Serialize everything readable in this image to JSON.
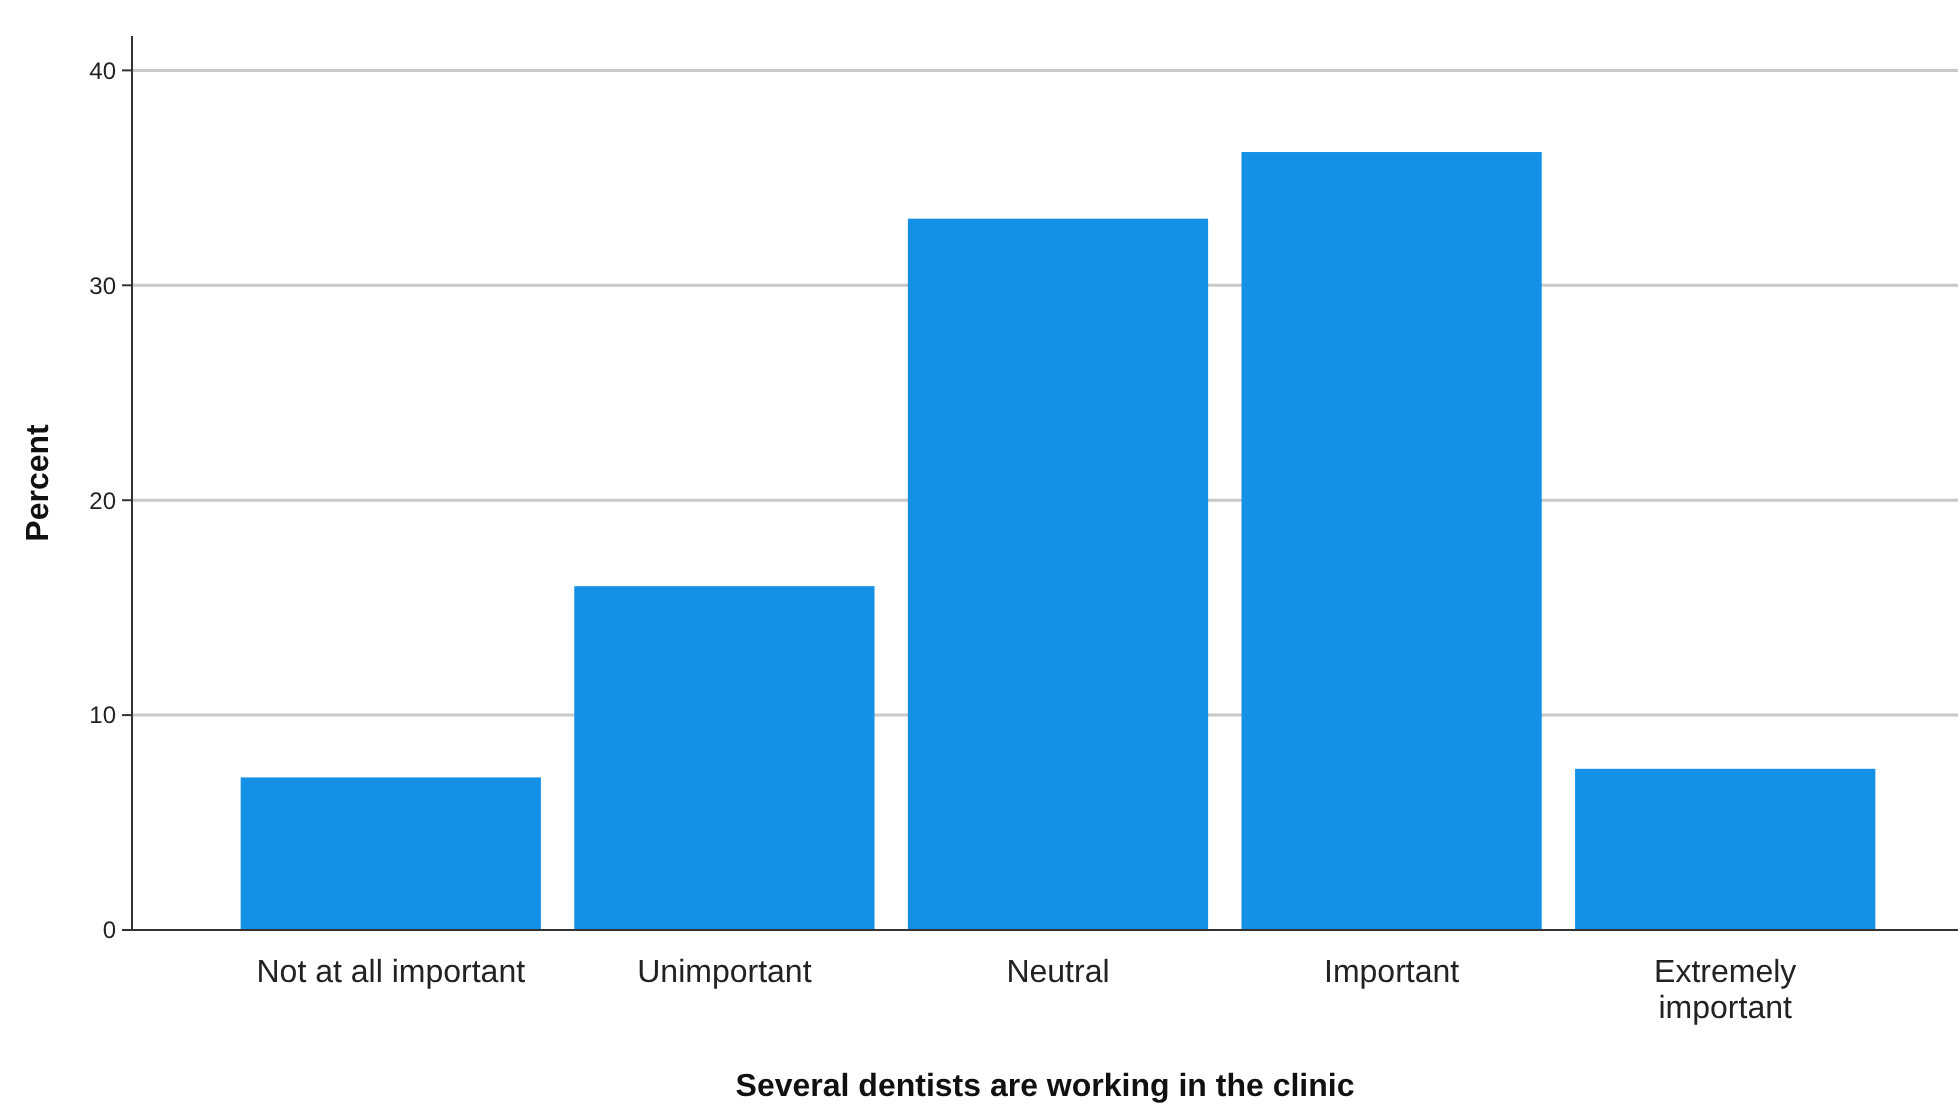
{
  "chart_data": {
    "type": "bar",
    "xlabel": "Several dentists are working in the clinic",
    "ylabel": "Percent",
    "categories": [
      "Not at all important",
      "Unimportant",
      "Neutral",
      "Important",
      "Extremely important"
    ],
    "values": [
      7.1,
      16.0,
      33.1,
      36.2,
      7.5
    ],
    "color": "#1490e6",
    "ylim": [
      0,
      41.6
    ],
    "yticks": [
      0,
      10,
      20,
      30,
      40
    ],
    "grid": "y"
  }
}
